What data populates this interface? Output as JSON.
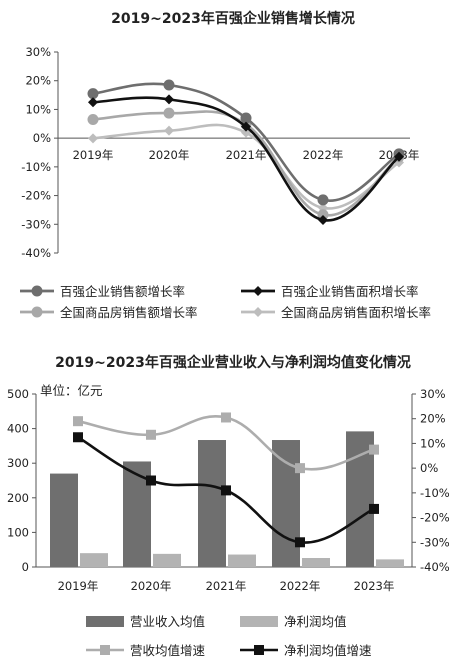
{
  "chart_data": [
    {
      "type": "line",
      "title": "2019~2023年百强企业销售增长情况",
      "categories": [
        "2019年",
        "2020年",
        "2021年",
        "2022年",
        "2023年"
      ],
      "y_ticks": [
        "30%",
        "20%",
        "10%",
        "0%",
        "-10%",
        "-20%",
        "-30%",
        "-40%"
      ],
      "ylim": [
        -40,
        30
      ],
      "unit": "%",
      "grid": false,
      "legend_position": "bottom",
      "series": [
        {
          "name": "百强企业销售额增长率",
          "values": [
            15.5,
            18.5,
            7,
            -21.5,
            -5.5
          ],
          "color": "#6e6e6e",
          "marker": "circle"
        },
        {
          "name": "百强企业销售面积增长率",
          "values": [
            12.5,
            13.5,
            4,
            -28.5,
            -6.5
          ],
          "color": "#111111",
          "marker": "diamond"
        },
        {
          "name": "全国商品房销售额增长率",
          "values": [
            6.5,
            8.7,
            4.8,
            -26.7,
            -6.5
          ],
          "color": "#a8a8a8",
          "marker": "circle"
        },
        {
          "name": "全国商品房销售面积增长率",
          "values": [
            -0.1,
            2.6,
            1.9,
            -24.3,
            -8.5
          ],
          "color": "#bdbdbd",
          "marker": "diamond"
        }
      ]
    },
    {
      "type": "bar",
      "title": "2019~2023年百强企业营业收入与净利润均值变化情况",
      "unit_label": "单位：亿元",
      "categories": [
        "2019年",
        "2020年",
        "2021年",
        "2022年",
        "2023年"
      ],
      "y_left_ticks": [
        "500",
        "400",
        "300",
        "200",
        "100",
        "0"
      ],
      "y_left_lim": [
        0,
        500
      ],
      "y_right_ticks": [
        "30%",
        "20%",
        "10%",
        "0%",
        "-10%",
        "-20%",
        "-30%",
        "-40%"
      ],
      "y_right_lim": [
        -40,
        30
      ],
      "grid": false,
      "legend_position": "bottom",
      "bar_series": [
        {
          "name": "营业收入均值",
          "values": [
            270,
            305,
            367,
            367,
            392
          ],
          "color": "#6f6f6f"
        },
        {
          "name": "净利润均值",
          "values": [
            40,
            38,
            36,
            26,
            22
          ],
          "color": "#b3b3b3"
        }
      ],
      "line_series": [
        {
          "name": "营收均值增速",
          "values": [
            19,
            13.5,
            20.5,
            0,
            7.5
          ],
          "color": "#adadad",
          "marker": "square"
        },
        {
          "name": "净利润均值增速",
          "values": [
            12.5,
            -5,
            -9,
            -30,
            -16.5
          ],
          "color": "#111111",
          "marker": "square"
        }
      ]
    }
  ]
}
